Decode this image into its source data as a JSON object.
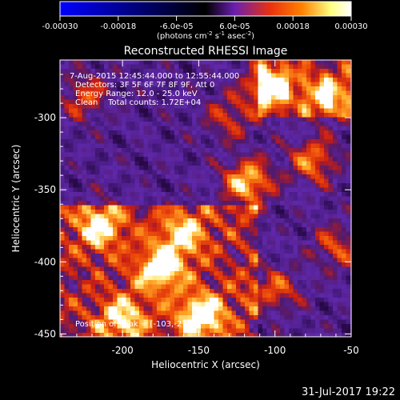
{
  "colorbar": {
    "ticks": [
      "-0.00030",
      "-0.00018",
      "-6.0e-05",
      "6.0e-05",
      "0.00018",
      "0.00030"
    ],
    "tick_values": [
      -0.0003,
      -0.00018,
      -6e-05,
      6e-05,
      0.00018,
      0.0003
    ],
    "range": [
      -0.0003,
      0.0003
    ],
    "units_main": "(photons cm",
    "units_exp1": "-2",
    "units_mid": " s",
    "units_exp2": "-1",
    "units_end": " asec",
    "units_exp3": "-2",
    "units_close": ")",
    "colors": [
      "#0000ff",
      "#000000",
      "#6a1fb0",
      "#e83010",
      "#ff8000",
      "#ffff80",
      "#ffffff"
    ]
  },
  "chart_data": {
    "type": "heatmap",
    "title": "Reconstructed RHESSI Image",
    "xlabel": "Heliocentric X (arcsec)",
    "ylabel": "Heliocentric Y (arcsec)",
    "xlim": [
      -241,
      -50
    ],
    "ylim": [
      -452,
      -260
    ],
    "xticks": [
      -200,
      -150,
      -100,
      -50
    ],
    "xtick_labels": [
      "-200",
      "-150",
      "-100",
      "-50"
    ],
    "yticks": [
      -450,
      -400,
      -350,
      -300
    ],
    "ytick_labels": [
      "-450",
      "-400",
      "-350",
      "-300"
    ],
    "annotations": [
      "7-Aug-2015 12:45:44.000 to 12:55:44.000",
      "Detectors: 3F 5F 6F 7F 8F 9F, Att 0",
      "Energy Range: 12.0 - 25.0 keV",
      "Clean    Total counts: 1.72E+04"
    ],
    "peak_label": "Position of Peak = [-103,-278]",
    "peak_position": [
      -103,
      -278
    ],
    "hotspots": [
      {
        "x": -103,
        "y": -278,
        "intensity": 1.0
      },
      {
        "x": -118,
        "y": -345,
        "intensity": 0.95
      },
      {
        "x": -148,
        "y": -438,
        "intensity": 0.9
      },
      {
        "x": -175,
        "y": -405,
        "intensity": 0.8
      },
      {
        "x": -215,
        "y": -375,
        "intensity": 0.75
      },
      {
        "x": -65,
        "y": -285,
        "intensity": 0.8
      },
      {
        "x": -75,
        "y": -330,
        "intensity": 0.7
      },
      {
        "x": -200,
        "y": -440,
        "intensity": 0.7
      },
      {
        "x": -100,
        "y": -420,
        "intensity": 0.6
      },
      {
        "x": -160,
        "y": -380,
        "intensity": 0.65
      },
      {
        "x": -225,
        "y": -285,
        "intensity": 0.55
      },
      {
        "x": -60,
        "y": -390,
        "intensity": 0.55
      },
      {
        "x": -130,
        "y": -300,
        "intensity": 0.5
      }
    ],
    "grid": false
  },
  "footer": {
    "date": "31-Jul-2017 19:22"
  }
}
